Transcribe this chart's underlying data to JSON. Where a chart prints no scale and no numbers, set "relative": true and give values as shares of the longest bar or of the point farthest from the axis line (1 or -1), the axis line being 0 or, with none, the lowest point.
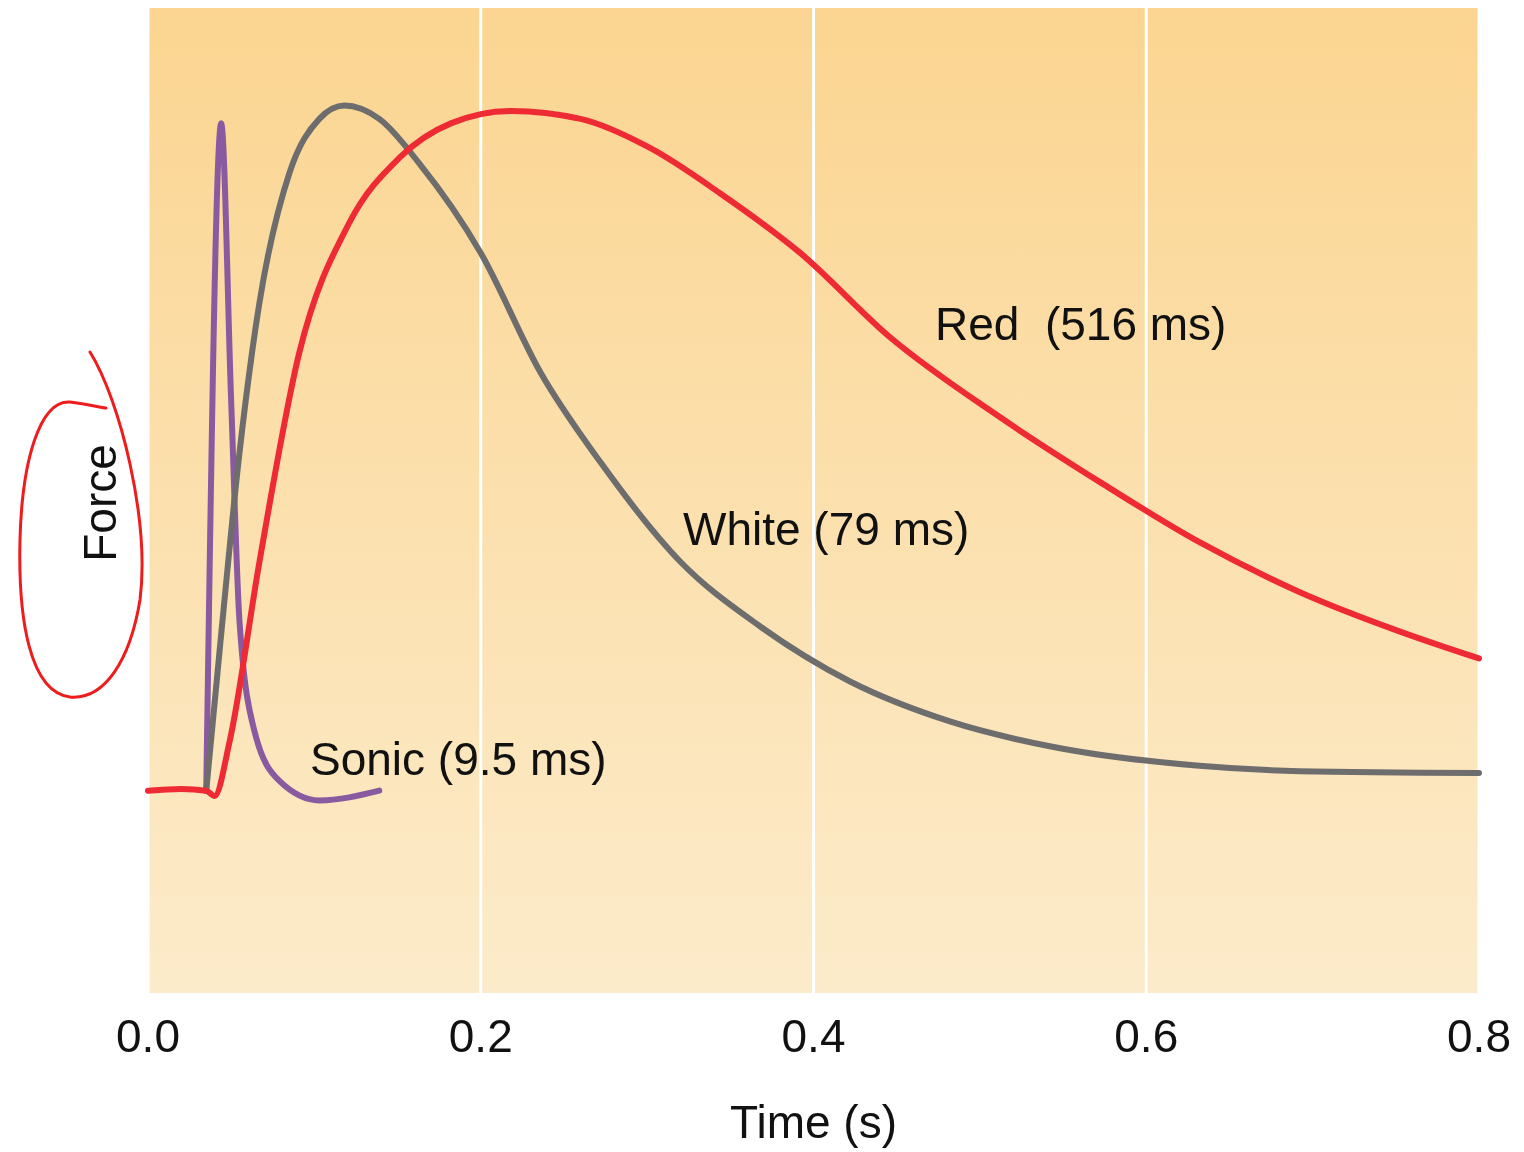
{
  "chart_data": {
    "type": "line",
    "xlabel": "Time (s)",
    "ylabel": "Force",
    "relative": true,
    "grid": "x",
    "tick_labels": "x",
    "xlim": [
      0,
      0.8
    ],
    "xticks": [
      {
        "value": 0,
        "label": "0.0"
      },
      0.2,
      0.4,
      0.6,
      0.8
    ],
    "series": [
      {
        "name": "Sonic (9.5 ms)",
        "color": "#8a5aa0",
        "x": [
          0.035,
          0.044,
          0.05,
          0.055,
          0.064,
          0.079,
          0.103,
          0.139
        ],
        "values": [
          0.228,
          0.98,
          0.666,
          0.419,
          0.295,
          0.239,
          0.217,
          0.228
        ]
      },
      {
        "name": "White (79 ms)",
        "color": "#6d6d6d",
        "x": [
          0.035,
          0.043,
          0.055,
          0.067,
          0.085,
          0.103,
          0.118,
          0.139,
          0.163,
          0.2,
          0.236,
          0.272,
          0.32,
          0.368,
          0.422,
          0.482,
          0.542,
          0.632,
          0.692,
          0.8
        ],
        "values": [
          0.228,
          0.385,
          0.609,
          0.778,
          0.924,
          0.985,
          1,
          0.985,
          0.935,
          0.834,
          0.699,
          0.598,
          0.486,
          0.413,
          0.351,
          0.306,
          0.278,
          0.256,
          0.25,
          0.248
        ]
      },
      {
        "name": "Red  (516 ms)",
        "color": "#ee2a35",
        "x": [
          0,
          0.02,
          0.035,
          0.04,
          0.049,
          0.067,
          0.091,
          0.121,
          0.151,
          0.182,
          0.218,
          0.26,
          0.302,
          0.344,
          0.392,
          0.446,
          0.512,
          0.572,
          0.632,
          0.692,
          0.753,
          0.8
        ],
        "values": [
          0.228,
          0.23,
          0.228,
          0.222,
          0.283,
          0.486,
          0.722,
          0.868,
          0.941,
          0.98,
          0.994,
          0.985,
          0.952,
          0.901,
          0.834,
          0.739,
          0.649,
          0.576,
          0.508,
          0.452,
          0.407,
          0.377
        ]
      }
    ]
  }
}
